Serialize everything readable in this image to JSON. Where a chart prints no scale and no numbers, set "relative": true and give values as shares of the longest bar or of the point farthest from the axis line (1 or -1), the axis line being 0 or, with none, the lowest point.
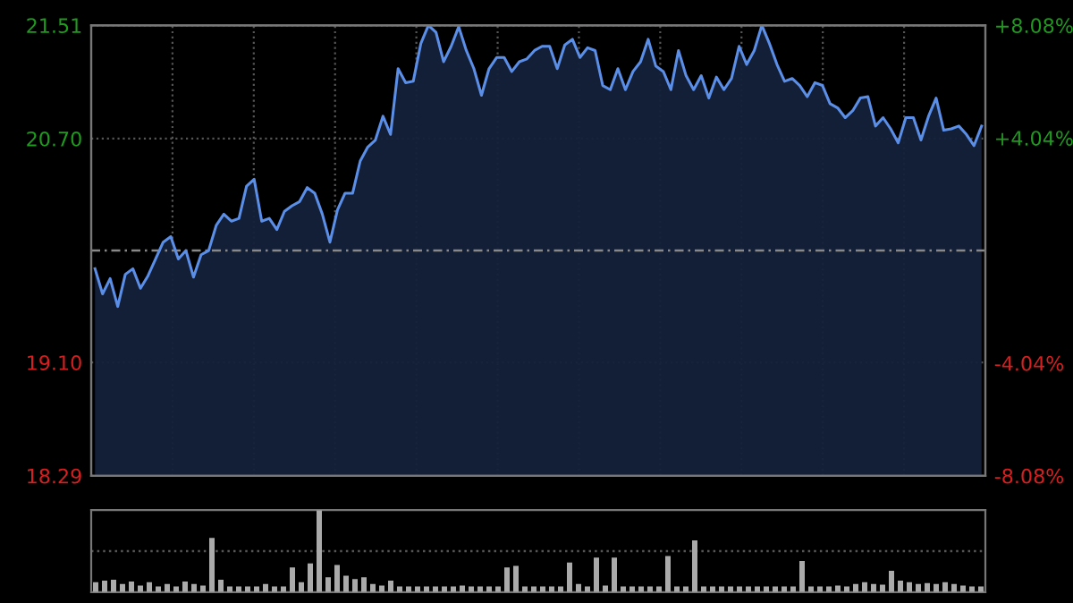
{
  "chart_data": [
    {
      "type": "area",
      "categories": [
        null,
        null,
        null,
        null,
        null,
        null,
        null,
        null,
        null,
        null,
        null,
        null,
        null,
        null,
        null,
        null,
        null,
        null,
        null,
        null,
        null,
        null,
        null,
        null,
        null,
        null,
        null,
        null,
        null,
        null,
        null,
        null,
        null,
        null,
        null,
        null,
        null,
        null,
        null,
        null,
        null,
        null,
        null,
        null,
        null,
        null,
        null,
        null,
        null,
        null,
        null,
        null,
        null,
        null,
        null,
        null,
        null,
        null,
        null,
        null,
        null,
        null,
        null,
        null,
        null,
        null,
        null,
        null,
        null,
        null,
        null,
        null,
        null,
        null,
        null,
        null,
        null,
        null,
        null,
        null,
        null,
        null,
        null,
        null,
        null,
        null,
        null,
        null,
        null,
        null,
        null,
        null,
        null,
        null,
        null,
        null,
        null,
        null,
        null,
        null,
        null,
        null,
        null,
        null,
        null,
        null,
        null,
        null,
        null,
        null,
        null,
        null,
        null,
        null,
        null,
        null,
        null,
        null
      ],
      "series": [
        {
          "color": "#5b8ee6",
          "values": [
            19.77,
            19.59,
            19.7,
            19.5,
            19.73,
            19.77,
            19.63,
            19.72,
            19.84,
            19.96,
            20.0,
            19.84,
            19.9,
            19.71,
            19.87,
            19.9,
            20.08,
            20.16,
            20.11,
            20.13,
            20.36,
            20.41,
            20.11,
            20.13,
            20.05,
            20.18,
            20.22,
            20.25,
            20.35,
            20.31,
            20.16,
            19.96,
            20.19,
            20.31,
            20.31,
            20.54,
            20.64,
            20.69,
            20.86,
            20.73,
            21.2,
            21.1,
            21.11,
            21.38,
            21.51,
            21.46,
            21.25,
            21.36,
            21.5,
            21.33,
            21.2,
            21.01,
            21.2,
            21.28,
            21.28,
            21.18,
            21.25,
            21.27,
            21.33,
            21.36,
            21.36,
            21.2,
            21.37,
            21.41,
            21.28,
            21.35,
            21.33,
            21.08,
            21.05,
            21.2,
            21.05,
            21.18,
            21.25,
            21.41,
            21.22,
            21.18,
            21.05,
            21.33,
            21.15,
            21.05,
            21.15,
            20.99,
            21.14,
            21.05,
            21.13,
            21.36,
            21.23,
            21.33,
            21.51,
            21.38,
            21.23,
            21.11,
            21.13,
            21.08,
            21.0,
            21.1,
            21.08,
            20.95,
            20.92,
            20.85,
            20.9,
            20.99,
            21.0,
            20.79,
            20.85,
            20.77,
            20.67,
            20.85,
            20.85,
            20.69,
            20.86,
            20.99,
            20.76,
            20.77,
            20.79,
            20.73,
            20.65,
            20.79
          ]
        }
      ],
      "ylim": [
        18.29,
        21.51
      ],
      "yticks": [
        18.29,
        {
          "value": 19.1,
          "label": "19.10"
        },
        {
          "value": 20.7,
          "label": "20.70"
        },
        21.51
      ],
      "y2lim": [
        -8.08,
        8.08
      ],
      "y2ticks": [
        {
          "value": -8.08,
          "label": "-8.08%"
        },
        {
          "value": -4.04,
          "label": "-4.04%"
        },
        {
          "value": 4.04,
          "label": "+4.04%"
        },
        {
          "value": 8.08,
          "label": "+8.08%"
        }
      ],
      "ref_lines": [
        {
          "axis": "y",
          "value": 19.9,
          "color": "#888888",
          "line_style": "dashed"
        }
      ],
      "grid": true
    },
    {
      "type": "bar",
      "relative": true,
      "color": "#aaaaaa",
      "ref_lines": [
        {
          "axis": "y",
          "value": 0.5,
          "color": "#555555",
          "line_style": "dotted"
        }
      ],
      "categories": [
        null,
        null,
        null,
        null,
        null,
        null,
        null,
        null,
        null,
        null,
        null,
        null,
        null,
        null,
        null,
        null,
        null,
        null,
        null,
        null,
        null,
        null,
        null,
        null,
        null,
        null,
        null,
        null,
        null,
        null,
        null,
        null,
        null,
        null,
        null,
        null,
        null,
        null,
        null,
        null,
        null,
        null,
        null,
        null,
        null,
        null,
        null,
        null,
        null,
        null,
        null,
        null,
        null,
        null,
        null,
        null,
        null,
        null,
        null,
        null,
        null,
        null,
        null,
        null,
        null,
        null,
        null,
        null,
        null,
        null,
        null,
        null,
        null,
        null,
        null,
        null,
        null,
        null,
        null,
        null,
        null,
        null,
        null,
        null,
        null,
        null,
        null,
        null,
        null,
        null,
        null,
        null,
        null,
        null,
        null,
        null,
        null,
        null,
        null,
        null
      ],
      "values": [
        0.12,
        0.14,
        0.15,
        0.1,
        0.13,
        0.08,
        0.12,
        0.07,
        0.1,
        0.07,
        0.13,
        0.1,
        0.08,
        0.66,
        0.15,
        0.07,
        0.07,
        0.07,
        0.07,
        0.1,
        0.07,
        0.07,
        0.3,
        0.12,
        0.35,
        1.0,
        0.18,
        0.33,
        0.2,
        0.16,
        0.18,
        0.1,
        0.08,
        0.14,
        0.07,
        0.07,
        0.07,
        0.07,
        0.07,
        0.07,
        0.07,
        0.08,
        0.07,
        0.07,
        0.07,
        0.07,
        0.3,
        0.32,
        0.07,
        0.07,
        0.07,
        0.07,
        0.07,
        0.36,
        0.1,
        0.07,
        0.42,
        0.08,
        0.42,
        0.07,
        0.07,
        0.07,
        0.07,
        0.07,
        0.44,
        0.07,
        0.07,
        0.63,
        0.07,
        0.07,
        0.07,
        0.07,
        0.07,
        0.07,
        0.07,
        0.07,
        0.07,
        0.07,
        0.07,
        0.38,
        0.07,
        0.07,
        0.07,
        0.08,
        0.07,
        0.1,
        0.12,
        0.1,
        0.09,
        0.26,
        0.14,
        0.12,
        0.1,
        0.11,
        0.1,
        0.12,
        0.1,
        0.08,
        0.07,
        0.07
      ]
    }
  ]
}
